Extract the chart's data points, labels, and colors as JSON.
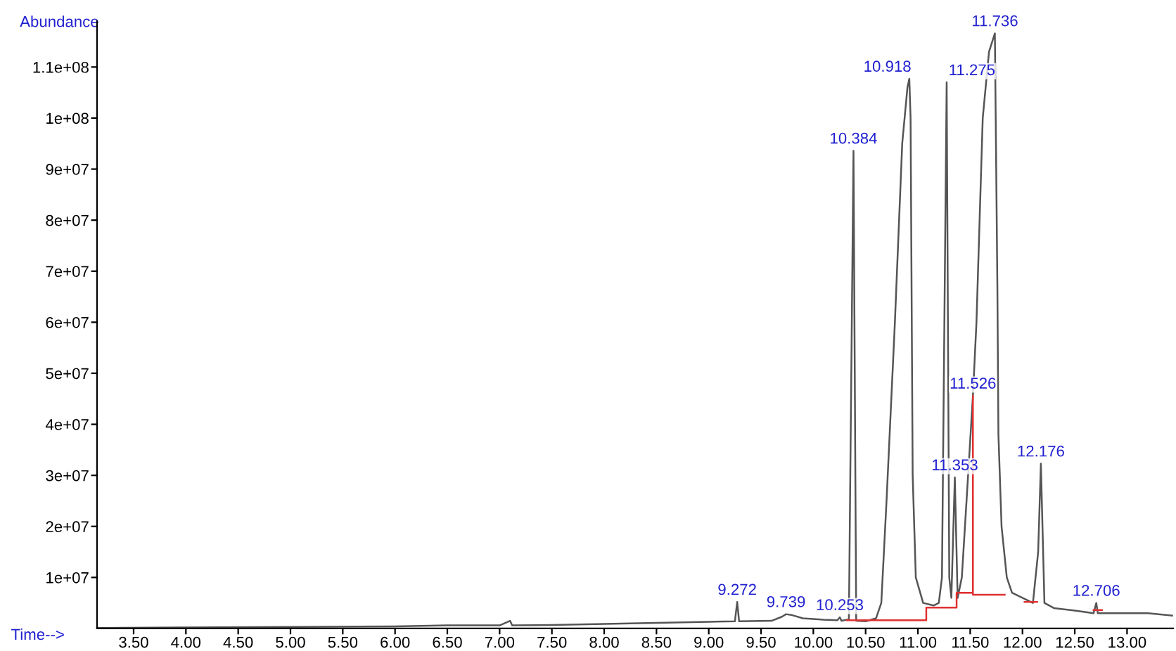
{
  "chart_data": {
    "type": "line",
    "xlabel": "Time-->",
    "ylabel": "Abundance",
    "xlim": [
      3.15,
      13.44
    ],
    "ylim": [
      0,
      119000000
    ],
    "xticks": [
      {
        "value": 3.5,
        "label": "3.50"
      },
      {
        "value": 4.0,
        "label": "4.00"
      },
      {
        "value": 4.5,
        "label": "4.50"
      },
      {
        "value": 5.0,
        "label": "5.00"
      },
      {
        "value": 5.5,
        "label": "5.50"
      },
      {
        "value": 6.0,
        "label": "6.00"
      },
      {
        "value": 6.5,
        "label": "6.50"
      },
      {
        "value": 7.0,
        "label": "7.00"
      },
      {
        "value": 7.5,
        "label": "7.50"
      },
      {
        "value": 8.0,
        "label": "8.00"
      },
      {
        "value": 8.5,
        "label": "8.50"
      },
      {
        "value": 9.0,
        "label": "9.00"
      },
      {
        "value": 9.5,
        "label": "9.50"
      },
      {
        "value": 10.0,
        "label": "10.00"
      },
      {
        "value": 10.5,
        "label": "10.50"
      },
      {
        "value": 11.0,
        "label": "11.00"
      },
      {
        "value": 11.5,
        "label": "11.50"
      },
      {
        "value": 12.0,
        "label": "12.00"
      },
      {
        "value": 12.5,
        "label": "12.50"
      },
      {
        "value": 13.0,
        "label": "13.00"
      }
    ],
    "yticks": [
      {
        "value": 10000000,
        "label": "1e+07"
      },
      {
        "value": 20000000,
        "label": "2e+07"
      },
      {
        "value": 30000000,
        "label": "3e+07"
      },
      {
        "value": 40000000,
        "label": "4e+07"
      },
      {
        "value": 50000000,
        "label": "5e+07"
      },
      {
        "value": 60000000,
        "label": "6e+07"
      },
      {
        "value": 70000000,
        "label": "7e+07"
      },
      {
        "value": 80000000,
        "label": "8e+07"
      },
      {
        "value": 90000000,
        "label": "9e+07"
      },
      {
        "value": 100000000,
        "label": "1e+08"
      },
      {
        "value": 110000000,
        "label": "1.1e+08"
      }
    ],
    "grid": false,
    "legend": false,
    "marker": "none",
    "line_style": "solid",
    "series": [
      {
        "color": "#555555",
        "x": [
          3.15,
          4,
          5,
          6,
          6.5,
          7,
          7.1,
          7.12,
          7.5,
          8,
          8.5,
          9,
          9.25,
          9.272,
          9.29,
          9.6,
          9.7,
          9.739,
          9.8,
          9.9,
          10.1,
          10.23,
          10.253,
          10.27,
          10.34,
          10.384,
          10.41,
          10.5,
          10.6,
          10.65,
          10.7,
          10.78,
          10.85,
          10.9,
          10.918,
          10.93,
          10.95,
          10.98,
          11.05,
          11.15,
          11.2,
          11.23,
          11.275,
          11.3,
          11.32,
          11.353,
          11.38,
          11.42,
          11.48,
          11.526,
          11.56,
          11.62,
          11.68,
          11.736,
          11.76,
          11.77,
          11.8,
          11.85,
          11.9,
          12.0,
          12.1,
          12.15,
          12.176,
          12.21,
          12.3,
          12.5,
          12.68,
          12.706,
          12.72,
          13.0,
          13.2,
          13.44
        ],
        "values": [
          100000,
          200000,
          300000,
          400000,
          600000,
          600000,
          1500000,
          600000,
          700000,
          900000,
          1100000,
          1300000,
          1400000,
          5200000,
          1400000,
          1500000,
          2300000,
          2800000,
          2600000,
          2000000,
          1700000,
          1600000,
          2200000,
          1500000,
          1800000,
          93600000,
          1500000,
          1400000,
          2000000,
          5000000,
          25000000,
          60000000,
          95000000,
          106000000,
          107700000,
          100000000,
          30000000,
          10000000,
          5000000,
          4500000,
          5000000,
          10000000,
          107000000,
          10000000,
          6000000,
          29600000,
          6000000,
          10000000,
          30000000,
          45600000,
          60000000,
          100000000,
          113000000,
          116600000,
          67000000,
          38000000,
          20000000,
          10000000,
          7000000,
          6000000,
          5000000,
          15000000,
          32300000,
          5000000,
          4000000,
          3500000,
          3000000,
          5000000,
          3000000,
          3000000,
          3000000,
          2500000
        ]
      },
      {
        "color": "#e03030",
        "x": [
          10.32,
          11.08,
          11.08,
          11.37,
          11.37,
          11.526,
          11.526,
          11.526,
          11.83
        ],
        "values": [
          1600000,
          1600000,
          4100000,
          4100000,
          7000000,
          7000000,
          45600000,
          6600000,
          6600000
        ]
      },
      {
        "color": "#e03030",
        "x": [
          12.02,
          12.14
        ],
        "values": [
          5200000,
          5200000
        ]
      },
      {
        "color": "#e03030",
        "x": [
          12.68,
          12.76
        ],
        "values": [
          3600000,
          3600000
        ]
      }
    ],
    "annotations": [
      {
        "text": "9.272",
        "x": 9.272,
        "y": 5200000
      },
      {
        "text": "9.739",
        "x": 9.739,
        "y": 2800000
      },
      {
        "text": "10.253",
        "x": 10.253,
        "y": 2200000
      },
      {
        "text": "10.384",
        "x": 10.384,
        "y": 93600000
      },
      {
        "text": "10.918",
        "x": 10.918,
        "y": 107700000
      },
      {
        "text": "11.275",
        "x": 11.275,
        "y": 107000000
      },
      {
        "text": "11.353",
        "x": 11.353,
        "y": 29600000
      },
      {
        "text": "11.526",
        "x": 11.526,
        "y": 45600000
      },
      {
        "text": "11.736",
        "x": 11.736,
        "y": 116600000
      },
      {
        "text": "12.176",
        "x": 12.176,
        "y": 32300000
      },
      {
        "text": "12.706",
        "x": 12.706,
        "y": 5000000
      }
    ]
  }
}
